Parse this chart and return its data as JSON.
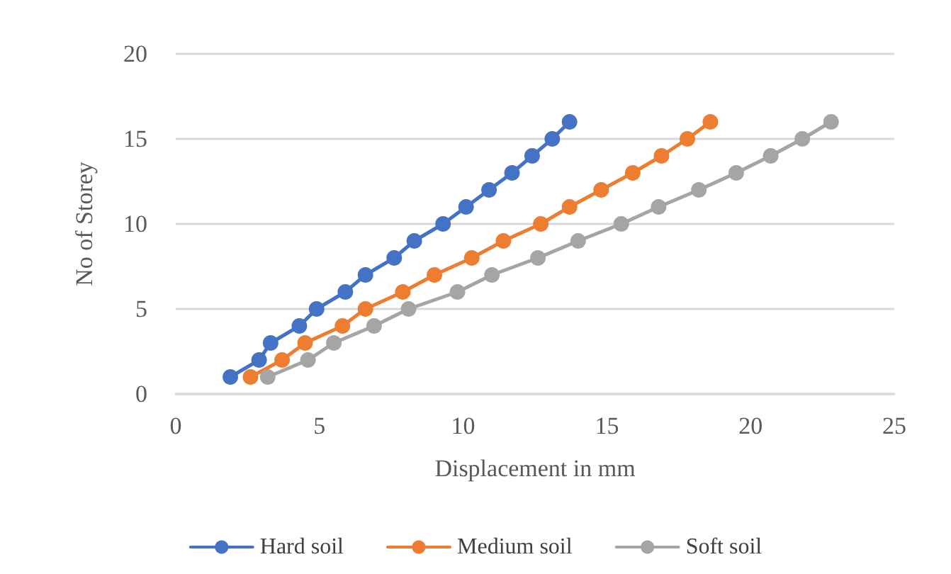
{
  "chart_data": {
    "type": "line",
    "xlabel": "Displacement in mm",
    "ylabel": "No of Storey",
    "xlim": [
      0,
      25
    ],
    "xticks": [
      0,
      5,
      10,
      15,
      20,
      25
    ],
    "ylim": [
      0,
      20
    ],
    "yticks": [
      0,
      5,
      10,
      15,
      20
    ],
    "grid": "y",
    "legend": "bottom",
    "marker": "circle",
    "line_style": "solid",
    "series": [
      {
        "name": "Hard soil",
        "color": "#4472c4",
        "x": [
          1.9,
          2.9,
          3.3,
          4.3,
          4.9,
          5.9,
          6.6,
          7.6,
          8.3,
          9.3,
          10.1,
          10.9,
          11.7,
          12.4,
          13.1,
          13.7
        ],
        "values": [
          1,
          2,
          3,
          4,
          5,
          6,
          7,
          8,
          9,
          10,
          11,
          12,
          13,
          14,
          15,
          16
        ]
      },
      {
        "name": "Medium soil",
        "color": "#ed7d31",
        "x": [
          2.6,
          3.7,
          4.5,
          5.8,
          6.6,
          7.9,
          9.0,
          10.3,
          11.4,
          12.7,
          13.7,
          14.8,
          15.9,
          16.9,
          17.8,
          18.6
        ],
        "values": [
          1,
          2,
          3,
          4,
          5,
          6,
          7,
          8,
          9,
          10,
          11,
          12,
          13,
          14,
          15,
          16
        ]
      },
      {
        "name": "Soft soil",
        "color": "#a5a5a5",
        "x": [
          3.2,
          4.6,
          5.5,
          6.9,
          8.1,
          9.8,
          11.0,
          12.6,
          14.0,
          15.5,
          16.8,
          18.2,
          19.5,
          20.7,
          21.8,
          22.8
        ],
        "values": [
          1,
          2,
          3,
          4,
          5,
          6,
          7,
          8,
          9,
          10,
          11,
          12,
          13,
          14,
          15,
          16
        ]
      }
    ]
  }
}
